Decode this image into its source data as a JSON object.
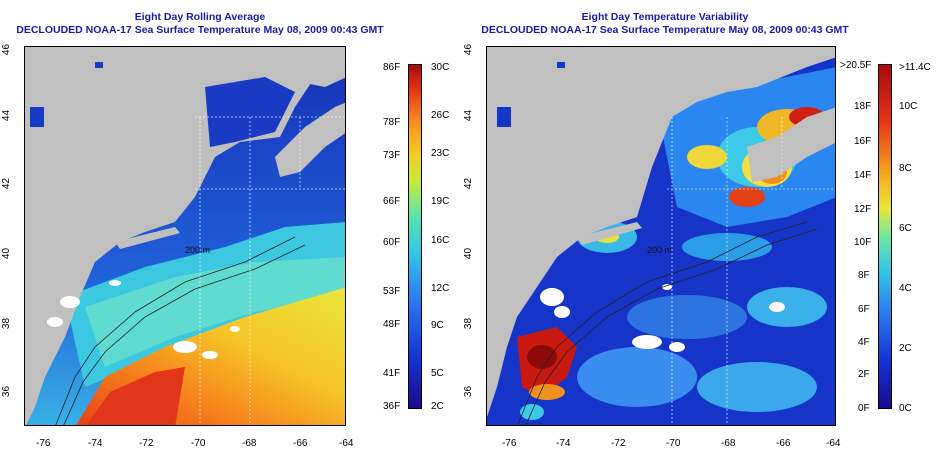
{
  "left_panel": {
    "title_line1": "Eight Day Rolling Average",
    "title_line2": "DECLOUDED NOAA-17 Sea Surface Temperature May 08, 2009 00:43 GMT",
    "x_ticks": [
      "-76",
      "-74",
      "-72",
      "-70",
      "-68",
      "-66",
      "-64"
    ],
    "y_ticks": [
      "46",
      "44",
      "42",
      "40",
      "38",
      "36"
    ],
    "colorbar_left_labels": [
      "86F",
      "78F",
      "73F",
      "66F",
      "60F",
      "53F",
      "48F",
      "41F",
      "36F"
    ],
    "colorbar_right_labels": [
      "30C",
      "26C",
      "23C",
      "19C",
      "16C",
      "12C",
      "9C",
      "5C",
      "2C"
    ],
    "contour_label": "200 m"
  },
  "right_panel": {
    "title_line1": "Eight Day Temperature Variability",
    "title_line2": "DECLOUDED NOAA-17 Sea Surface Temperature May 08, 2009 00:43 GMT",
    "x_ticks": [
      "-76",
      "-74",
      "-72",
      "-70",
      "-68",
      "-66",
      "-64"
    ],
    "y_ticks": [
      "46",
      "44",
      "42",
      "40",
      "38",
      "36"
    ],
    "colorbar_left_labels": [
      ">20.5F",
      "18F",
      "16F",
      "14F",
      "12F",
      "10F",
      "8F",
      "6F",
      "4F",
      "2F",
      "0F"
    ],
    "colorbar_right_labels": [
      ">11.4C",
      "10C",
      "8C",
      "6C",
      "4C",
      "2C",
      "0C"
    ],
    "contour_label": "200 m"
  },
  "colors": {
    "land": "#c0c0c0",
    "title": "#1a1aa6"
  }
}
